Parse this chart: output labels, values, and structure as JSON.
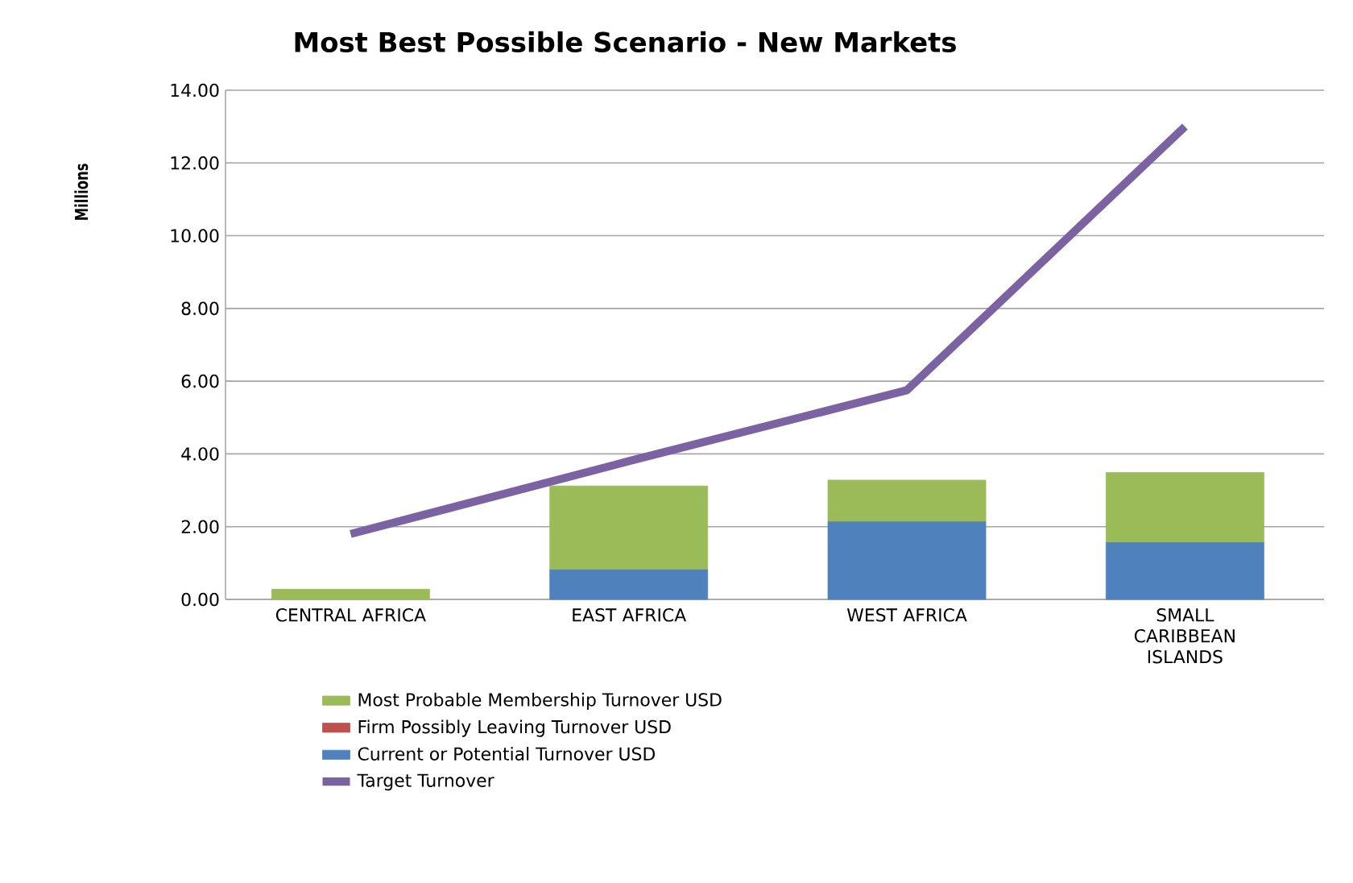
{
  "chart_data": {
    "type": "bar",
    "title": "Most Best Possible Scenario - New Markets",
    "ylabel": "Millions",
    "categories": [
      "CENTRAL AFRICA",
      "EAST AFRICA",
      "WEST AFRICA",
      "SMALL CARIBBEAN ISLANDS"
    ],
    "stacked": true,
    "series": [
      {
        "type": "line",
        "name": "Target Turnover",
        "color": "#7b62a3",
        "values": [
          1.8,
          3.8,
          5.75,
          13.0
        ]
      },
      {
        "name": "Current or Potential Turnover USD",
        "color": "#4f81bd",
        "values": [
          0,
          0.83,
          2.15,
          1.58
        ]
      },
      {
        "name": "Firm Possibly Leaving Turnover USD",
        "color": "#c0504d",
        "values": [
          0,
          0,
          0,
          0
        ]
      },
      {
        "name": "Most Probable Membership Turnover USD",
        "color": "#9bbb59",
        "values": [
          0.28,
          2.29,
          1.13,
          1.91
        ]
      }
    ],
    "ylim": [
      0,
      14
    ],
    "yticks": [
      {
        "value": 0,
        "label": "0.00"
      },
      {
        "value": 2,
        "label": "2.00"
      },
      {
        "value": 4,
        "label": "4.00"
      },
      {
        "value": 6,
        "label": "6.00"
      },
      {
        "value": 8,
        "label": "8.00"
      },
      {
        "value": 10,
        "label": "10.00"
      },
      {
        "value": 12,
        "label": "12.00"
      },
      {
        "value": 14,
        "label": "14.00"
      }
    ],
    "grid": "y",
    "legend": "bottom",
    "marker": "none",
    "line_style": "solid"
  }
}
